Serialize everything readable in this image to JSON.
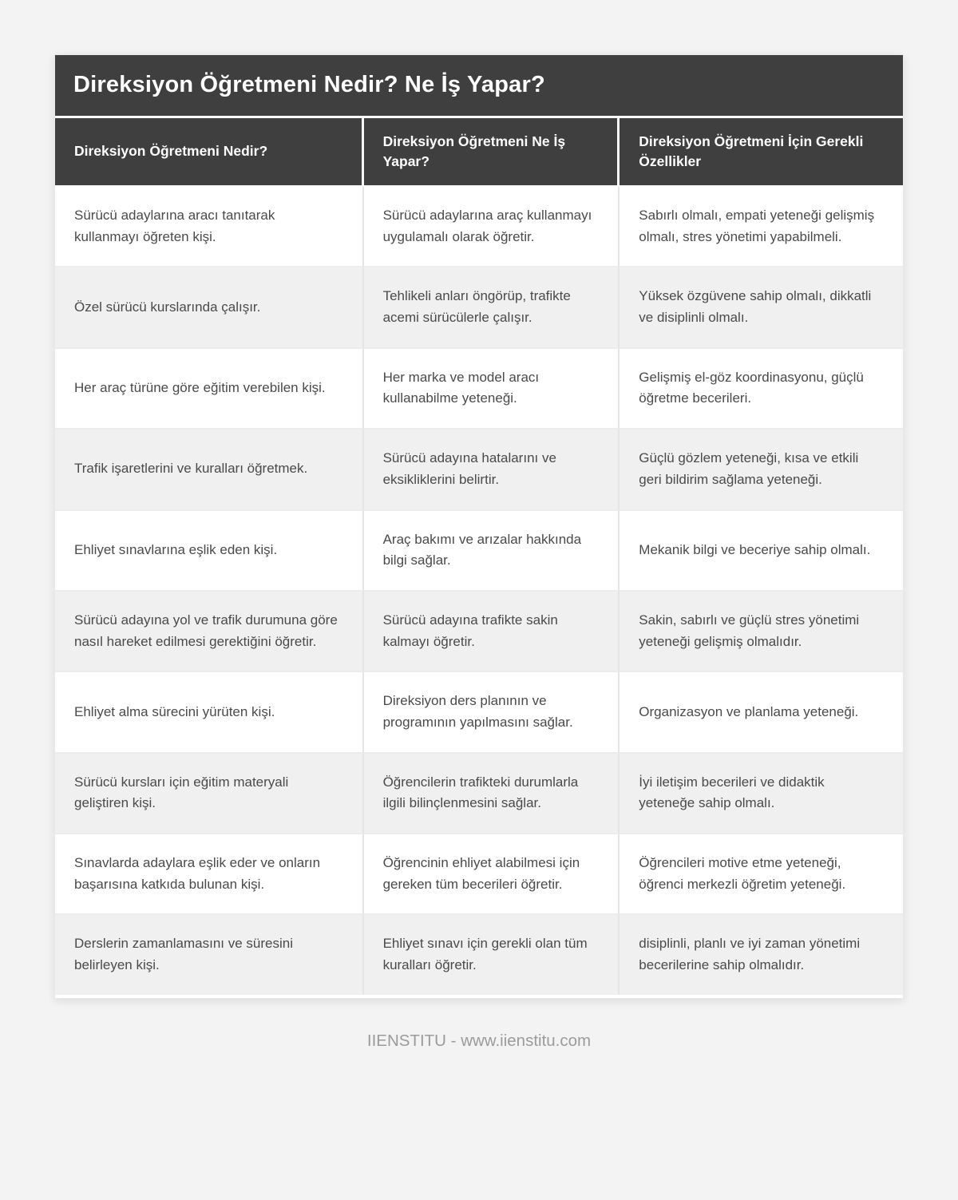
{
  "page": {
    "title": "Direksiyon Öğretmeni Nedir? Ne İş Yapar?",
    "footer": "IIENSTITU - www.iienstitu.com"
  },
  "table": {
    "columns": [
      "Direksiyon Öğretmeni Nedir?",
      "Direksiyon Öğretmeni Ne İş Yapar?",
      "Direksiyon Öğretmeni İçin Gerekli Özellikler"
    ],
    "rows": [
      [
        "Sürücü adaylarına aracı tanıtarak kullanmayı öğreten kişi.",
        "Sürücü adaylarına araç kullanmayı uygulamalı olarak öğretir.",
        "Sabırlı olmalı, empati yeteneği gelişmiş olmalı, stres yönetimi yapabilmeli."
      ],
      [
        "Özel sürücü kurslarında çalışır.",
        "Tehlikeli anları öngörüp, trafikte acemi sürücülerle çalışır.",
        "Yüksek özgüvene sahip olmalı, dikkatli ve disiplinli olmalı."
      ],
      [
        "Her araç türüne göre eğitim verebilen kişi.",
        "Her marka ve model aracı kullanabilme yeteneği.",
        "Gelişmiş el-göz koordinasyonu, güçlü öğretme becerileri."
      ],
      [
        "Trafik işaretlerini ve kuralları öğretmek.",
        "Sürücü adayına hatalarını ve eksikliklerini belirtir.",
        "Güçlü gözlem yeteneği, kısa ve etkili geri bildirim sağlama yeteneği."
      ],
      [
        "Ehliyet sınavlarına eşlik eden kişi.",
        "Araç bakımı ve arızalar hakkında bilgi sağlar.",
        "Mekanik bilgi ve beceriye sahip olmalı."
      ],
      [
        "Sürücü adayına yol ve trafik durumuna göre nasıl hareket edilmesi gerektiğini öğretir.",
        "Sürücü adayına trafikte sakin kalmayı öğretir.",
        "Sakin, sabırlı ve güçlü stres yönetimi yeteneği gelişmiş olmalıdır."
      ],
      [
        "Ehliyet alma sürecini yürüten kişi.",
        "Direksiyon ders planının ve programının yapılmasını sağlar.",
        "Organizasyon ve planlama yeteneği."
      ],
      [
        "Sürücü kursları için eğitim materyali geliştiren kişi.",
        "Öğrencilerin trafikteki durumlarla ilgili bilinçlenmesini sağlar.",
        "İyi iletişim becerileri ve didaktik yeteneğe sahip olmalı."
      ],
      [
        "Sınavlarda adaylara eşlik eder ve onların başarısına katkıda bulunan kişi.",
        "Öğrencinin ehliyet alabilmesi için gereken tüm becerileri öğretir.",
        "Öğrencileri motive etme yeteneği, öğrenci merkezli öğretim yeteneği."
      ],
      [
        "Derslerin zamanlamasını ve süresini belirleyen kişi.",
        "Ehliyet sınavı için gerekli olan tüm kuralları öğretir.",
        "disiplinli, planlı ve iyi zaman yönetimi becerilerine sahip olmalıdır."
      ]
    ]
  },
  "colors": {
    "header_bg": "#3f3f3f",
    "header_text": "#ffffff",
    "page_bg": "#f3f3f3",
    "row_bg": "#ffffff",
    "row_alt_bg": "#f0f0f0",
    "body_text": "#4a4a4a",
    "footer_text": "#9b9b9b",
    "separator": "#e5e5e5"
  }
}
